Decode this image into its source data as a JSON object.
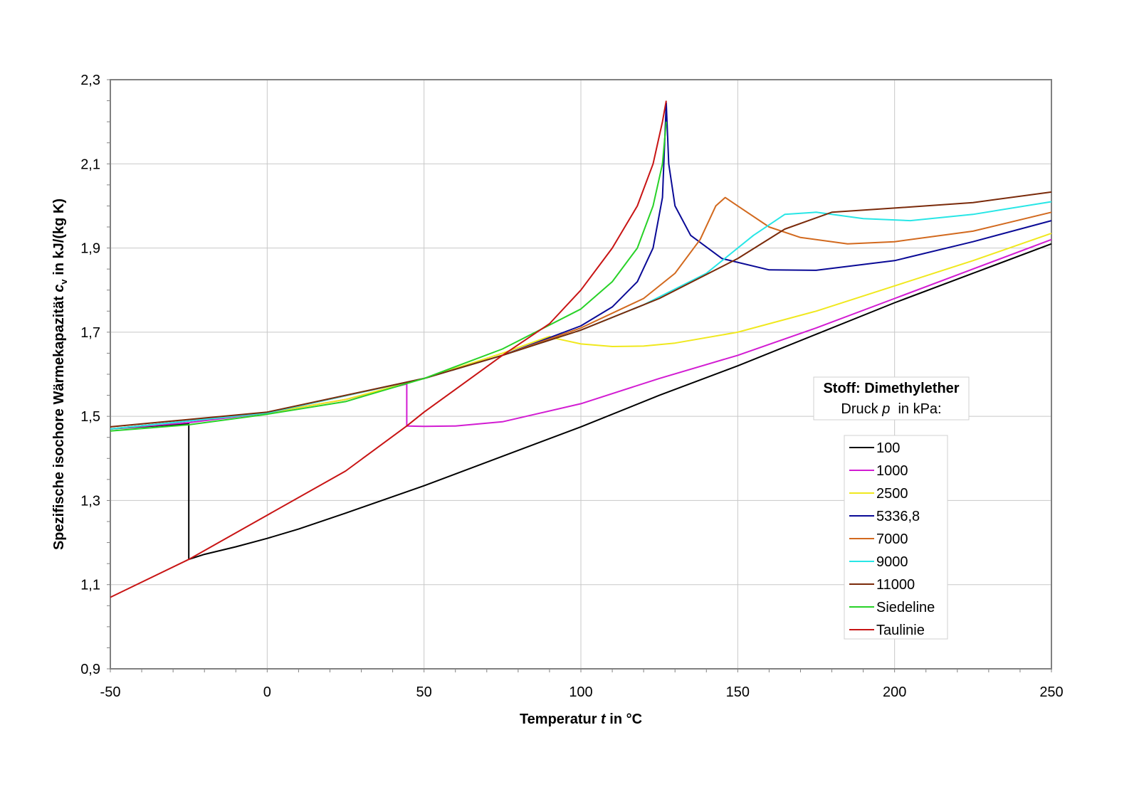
{
  "chart_data": {
    "type": "line",
    "title": "",
    "xlabel": "Temperatur t in °C",
    "xlabel_parts": [
      "Temperatur ",
      "t",
      " in °C"
    ],
    "ylabel": "Spezifische isochore Wärmekapazität c_v in kJ/(kg K)",
    "ylabel_parts": [
      "Spezifische isochore Wärmekapazität ",
      "c",
      "v",
      " in kJ/(kg K)"
    ],
    "xlim": [
      -50,
      250
    ],
    "ylim": [
      0.9,
      2.3
    ],
    "x_ticks": [
      -50,
      0,
      50,
      100,
      150,
      200,
      250
    ],
    "x_tick_labels": [
      "-50",
      "0",
      "50",
      "100",
      "150",
      "200",
      "250"
    ],
    "y_ticks": [
      0.9,
      1.1,
      1.3,
      1.5,
      1.7,
      1.9,
      2.1,
      2.3
    ],
    "y_tick_labels": [
      "0,9",
      "1,1",
      "1,3",
      "1,5",
      "1,7",
      "1,9",
      "2,1",
      "2,3"
    ],
    "grid": true,
    "info_box": {
      "title": "Stoff: Dimethylether",
      "subtitle_parts": [
        "Druck ",
        "p",
        "  in kPa:"
      ]
    },
    "legend_position": "right-inner",
    "series": [
      {
        "name": "100",
        "color": "#000000",
        "points": [
          [
            -50,
            1.47
          ],
          [
            -40,
            1.475
          ],
          [
            -30,
            1.48
          ],
          [
            -25,
            1.482
          ],
          [
            -25,
            1.16
          ],
          [
            -20,
            1.172
          ],
          [
            -10,
            1.19
          ],
          [
            0,
            1.21
          ],
          [
            10,
            1.232
          ],
          [
            25,
            1.27
          ],
          [
            50,
            1.335
          ],
          [
            75,
            1.405
          ],
          [
            100,
            1.475
          ],
          [
            125,
            1.55
          ],
          [
            150,
            1.62
          ],
          [
            175,
            1.695
          ],
          [
            200,
            1.77
          ],
          [
            225,
            1.84
          ],
          [
            250,
            1.91
          ]
        ]
      },
      {
        "name": "1000",
        "color": "#d21cd2",
        "points": [
          [
            -50,
            1.47
          ],
          [
            -25,
            1.485
          ],
          [
            0,
            1.508
          ],
          [
            25,
            1.54
          ],
          [
            44.5,
            1.577
          ],
          [
            44.5,
            1.477
          ],
          [
            50,
            1.476
          ],
          [
            60,
            1.477
          ],
          [
            75,
            1.487
          ],
          [
            100,
            1.53
          ],
          [
            125,
            1.59
          ],
          [
            150,
            1.645
          ],
          [
            175,
            1.71
          ],
          [
            200,
            1.78
          ],
          [
            225,
            1.85
          ],
          [
            250,
            1.92
          ]
        ]
      },
      {
        "name": "2500",
        "color": "#f0e81e",
        "points": [
          [
            -50,
            1.47
          ],
          [
            0,
            1.508
          ],
          [
            25,
            1.54
          ],
          [
            50,
            1.59
          ],
          [
            75,
            1.65
          ],
          [
            90,
            1.69
          ],
          [
            92,
            1.685
          ],
          [
            100,
            1.672
          ],
          [
            110,
            1.666
          ],
          [
            120,
            1.667
          ],
          [
            130,
            1.674
          ],
          [
            150,
            1.7
          ],
          [
            175,
            1.75
          ],
          [
            200,
            1.81
          ],
          [
            225,
            1.87
          ],
          [
            250,
            1.935
          ]
        ]
      },
      {
        "name": "5336,8",
        "color": "#0a0a96",
        "points": [
          [
            -50,
            1.47
          ],
          [
            0,
            1.508
          ],
          [
            50,
            1.59
          ],
          [
            75,
            1.645
          ],
          [
            100,
            1.715
          ],
          [
            110,
            1.76
          ],
          [
            118,
            1.82
          ],
          [
            123,
            1.9
          ],
          [
            126,
            2.02
          ],
          [
            127.2,
            2.245
          ],
          [
            128,
            2.1
          ],
          [
            130,
            2.0
          ],
          [
            135,
            1.93
          ],
          [
            145,
            1.875
          ],
          [
            160,
            1.848
          ],
          [
            175,
            1.847
          ],
          [
            200,
            1.87
          ],
          [
            225,
            1.915
          ],
          [
            250,
            1.965
          ]
        ]
      },
      {
        "name": "7000",
        "color": "#d2691e",
        "points": [
          [
            -50,
            1.47
          ],
          [
            0,
            1.508
          ],
          [
            50,
            1.59
          ],
          [
            75,
            1.645
          ],
          [
            100,
            1.71
          ],
          [
            120,
            1.78
          ],
          [
            130,
            1.84
          ],
          [
            138,
            1.92
          ],
          [
            143,
            2.0
          ],
          [
            146,
            2.02
          ],
          [
            150,
            2.0
          ],
          [
            160,
            1.95
          ],
          [
            170,
            1.925
          ],
          [
            185,
            1.91
          ],
          [
            200,
            1.915
          ],
          [
            225,
            1.94
          ],
          [
            250,
            1.985
          ]
        ]
      },
      {
        "name": "9000",
        "color": "#28e6e6",
        "points": [
          [
            -50,
            1.47
          ],
          [
            0,
            1.508
          ],
          [
            50,
            1.59
          ],
          [
            75,
            1.645
          ],
          [
            100,
            1.705
          ],
          [
            120,
            1.765
          ],
          [
            140,
            1.84
          ],
          [
            155,
            1.93
          ],
          [
            165,
            1.98
          ],
          [
            175,
            1.985
          ],
          [
            190,
            1.97
          ],
          [
            205,
            1.965
          ],
          [
            225,
            1.98
          ],
          [
            250,
            2.01
          ]
        ]
      },
      {
        "name": "11000",
        "color": "#7a2a0a",
        "points": [
          [
            -50,
            1.475
          ],
          [
            0,
            1.51
          ],
          [
            50,
            1.59
          ],
          [
            75,
            1.645
          ],
          [
            100,
            1.705
          ],
          [
            125,
            1.78
          ],
          [
            150,
            1.875
          ],
          [
            165,
            1.945
          ],
          [
            180,
            1.985
          ],
          [
            200,
            1.995
          ],
          [
            225,
            2.008
          ],
          [
            250,
            2.033
          ]
        ]
      },
      {
        "name": "Siedeline",
        "color": "#28d228",
        "points": [
          [
            -50,
            1.465
          ],
          [
            -25,
            1.48
          ],
          [
            0,
            1.505
          ],
          [
            25,
            1.535
          ],
          [
            50,
            1.59
          ],
          [
            75,
            1.66
          ],
          [
            100,
            1.755
          ],
          [
            110,
            1.82
          ],
          [
            118,
            1.9
          ],
          [
            123,
            2.0
          ],
          [
            126,
            2.1
          ],
          [
            127.2,
            2.2
          ]
        ]
      },
      {
        "name": "Taulinie",
        "color": "#c81414",
        "points": [
          [
            -50,
            1.07
          ],
          [
            -25,
            1.16
          ],
          [
            0,
            1.265
          ],
          [
            25,
            1.37
          ],
          [
            44.5,
            1.477
          ],
          [
            50,
            1.51
          ],
          [
            75,
            1.645
          ],
          [
            90,
            1.72
          ],
          [
            100,
            1.8
          ],
          [
            110,
            1.9
          ],
          [
            118,
            2.0
          ],
          [
            123,
            2.1
          ],
          [
            126,
            2.2
          ],
          [
            127.2,
            2.25
          ]
        ]
      }
    ]
  }
}
